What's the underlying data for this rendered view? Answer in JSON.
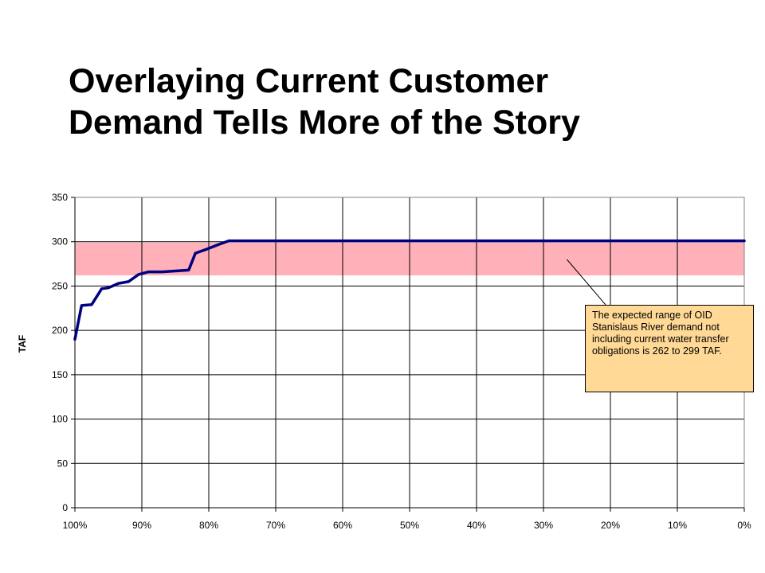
{
  "slide": {
    "title_lines": [
      "Overlaying Current Customer",
      "Demand Tells More of the Story"
    ]
  },
  "chart_data": {
    "type": "line",
    "title": "",
    "xlabel": "",
    "ylabel": "TAF",
    "x_ticks": [
      "100%",
      "90%",
      "80%",
      "70%",
      "60%",
      "50%",
      "40%",
      "30%",
      "20%",
      "10%",
      "0%"
    ],
    "y_ticks": [
      "0",
      "50",
      "100",
      "150",
      "200",
      "250",
      "300",
      "350"
    ],
    "xlim": [
      100,
      0
    ],
    "ylim": [
      0,
      350
    ],
    "grid": true,
    "legend": "none",
    "series": [
      {
        "color": "#000080",
        "points": [
          [
            100,
            190
          ],
          [
            99,
            228
          ],
          [
            97.5,
            229
          ],
          [
            96,
            247
          ],
          [
            95,
            248
          ],
          [
            93.5,
            253
          ],
          [
            92,
            255
          ],
          [
            90.5,
            263
          ],
          [
            89,
            266
          ],
          [
            87,
            266
          ],
          [
            85,
            267
          ],
          [
            83,
            268
          ],
          [
            82,
            287
          ],
          [
            80.5,
            291
          ],
          [
            78.5,
            297
          ],
          [
            77,
            301
          ],
          [
            0,
            301
          ]
        ]
      }
    ],
    "shaded_band": {
      "y_from": 262,
      "y_to": 299,
      "x_from": 100,
      "x_to": 0,
      "color": "#ffb0b8"
    },
    "annotation": {
      "text": "The expected range of OID Stanislaus River demand not including current water transfer obligations is 262 to 299 TAF.",
      "points_to": [
        26.5,
        280
      ]
    },
    "colors": {
      "plot_border": "#808080",
      "gridline": "#000000",
      "callout_fill": "#ffd995"
    }
  }
}
